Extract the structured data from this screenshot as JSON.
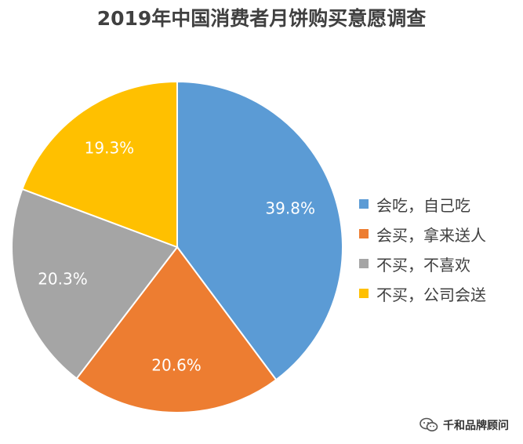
{
  "chart_data": {
    "type": "pie",
    "title": "2019年中国消费者月饼购买意愿调查",
    "categories": [
      "会吃，自己吃",
      "会买，拿来送人",
      "不买，不喜欢",
      "不买，公司会送"
    ],
    "values": [
      39.8,
      20.6,
      20.3,
      19.3
    ],
    "labels": [
      "39.8%",
      "20.6%",
      "20.3%",
      "19.3%"
    ],
    "colors": [
      "#5B9BD5",
      "#ED7D31",
      "#A5A5A5",
      "#FFC000"
    ],
    "legend": "right"
  },
  "watermark": {
    "text": "千和品牌顾问",
    "icon": "wechat-icon"
  }
}
